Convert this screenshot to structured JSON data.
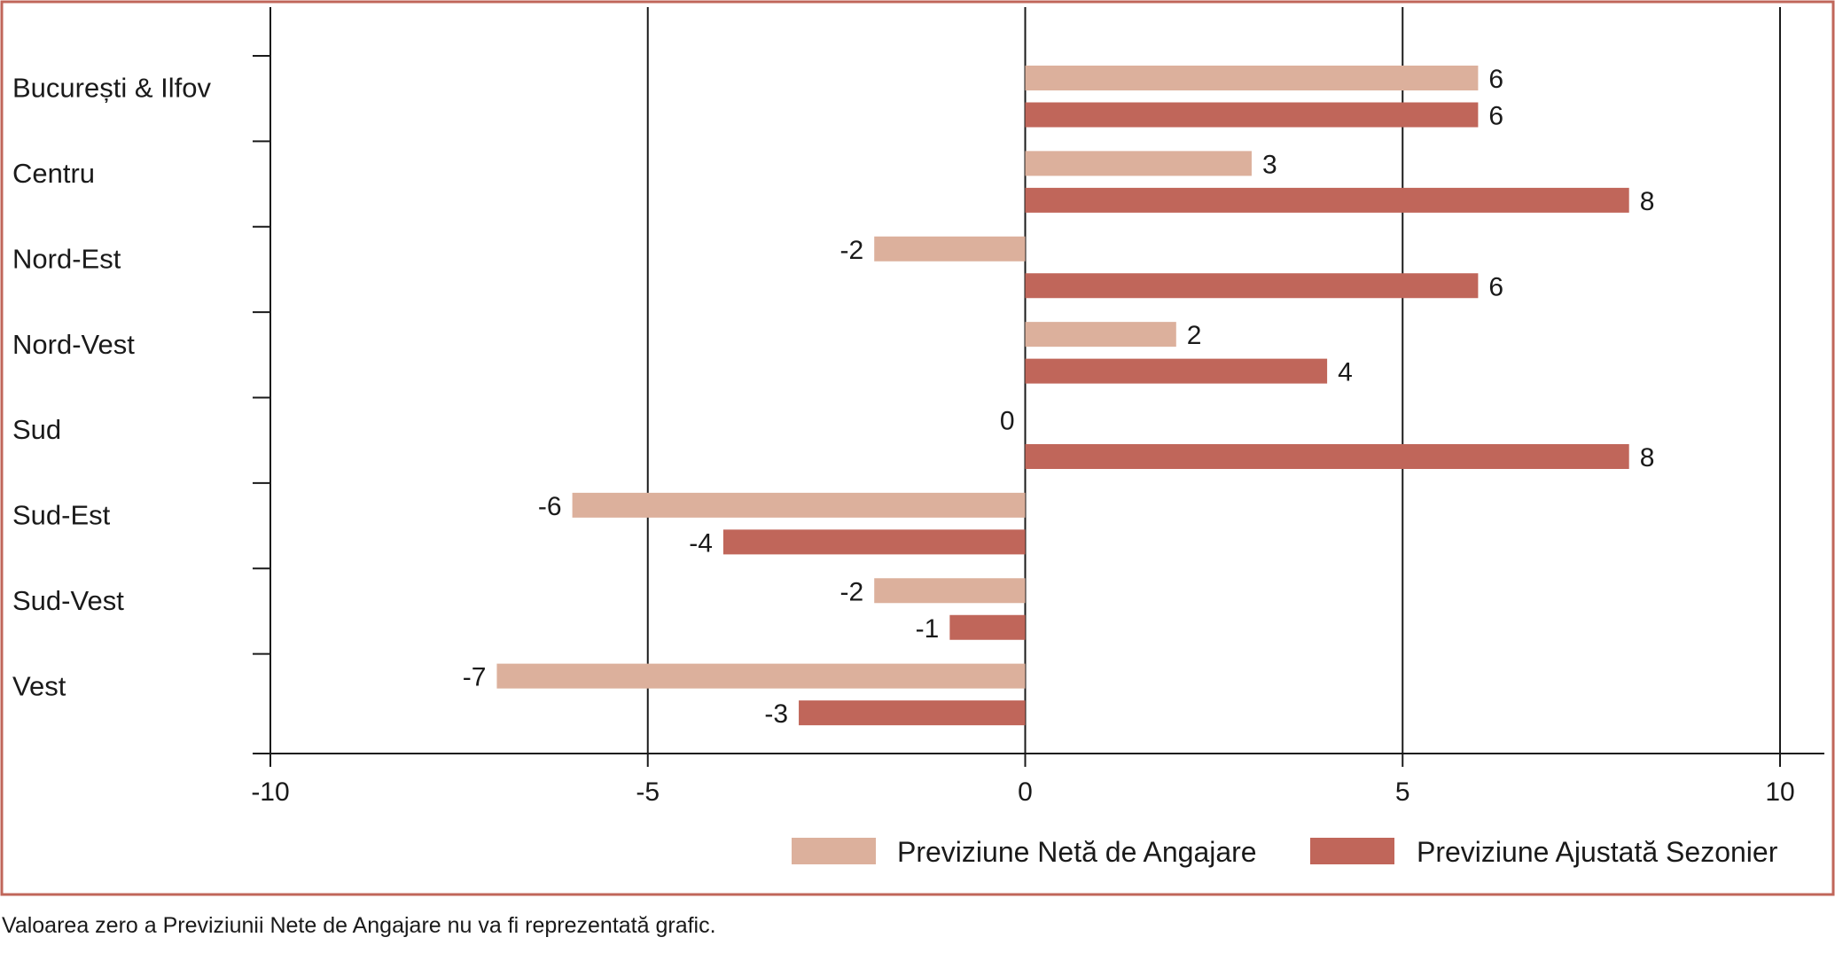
{
  "chart_data": {
    "type": "bar",
    "orientation": "horizontal",
    "categories": [
      "București & Ilfov",
      "Centru",
      "Nord-Est",
      "Nord-Vest",
      "Sud",
      "Sud-Est",
      "Sud-Vest",
      "Vest"
    ],
    "series": [
      {
        "name": "Previziune Netă de Angajare",
        "values": [
          6,
          3,
          -2,
          2,
          0,
          -6,
          -2,
          -7
        ],
        "color": "#dcb09c"
      },
      {
        "name": "Previziune Ajustată Sezonier",
        "values": [
          6,
          8,
          6,
          4,
          8,
          -4,
          -1,
          -3
        ],
        "color": "#c0665a"
      }
    ],
    "xlim": [
      -10,
      10
    ],
    "xticks": [
      -10,
      -5,
      0,
      5,
      10
    ],
    "xtick_labels": [
      "-10",
      "-5",
      "0",
      "5",
      "10"
    ],
    "grid": "vertical",
    "legend_position": "bottom-right",
    "frame_color": "#c0665a",
    "title": "",
    "xlabel": "",
    "ylabel": ""
  },
  "footnote": "Valoarea zero a Previziunii Nete de Angajare nu va fi reprezentată grafic."
}
